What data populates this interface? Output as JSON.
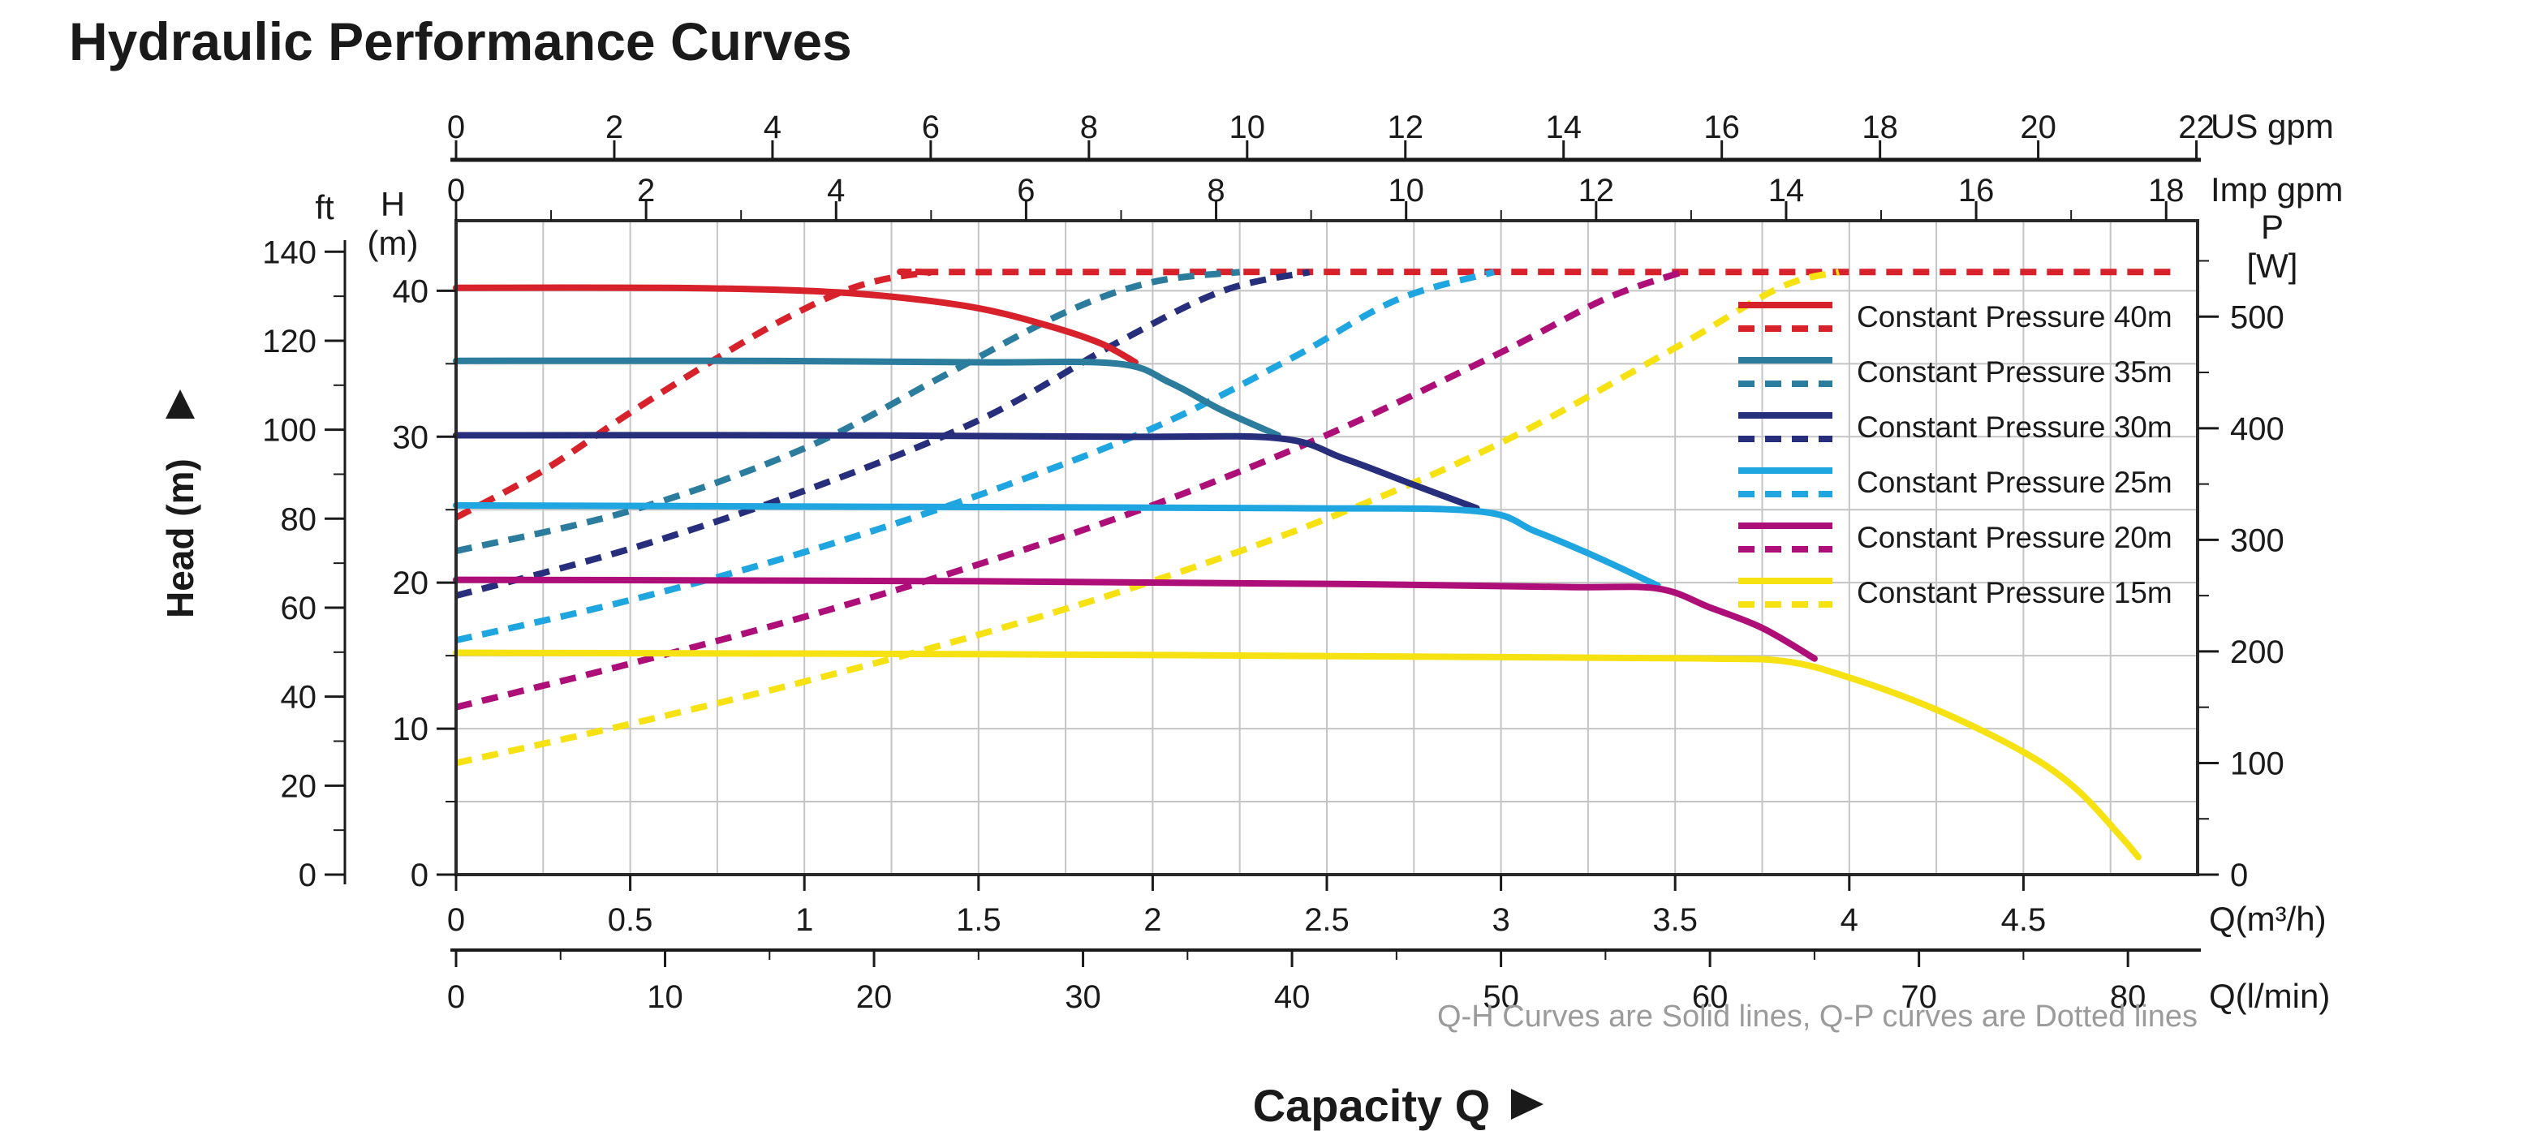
{
  "title": "Hydraulic Performance Curves",
  "note": "Q-H Curves are Solid lines, Q-P curves are Dotted lines",
  "x_axis_title": "Capacity Q",
  "y_axis_title": "Head (m)",
  "colors": {
    "title": "#e0602f",
    "axis": "#1a1a1a",
    "grid": "#c4c4c4",
    "border": "#2a2a2a",
    "note": "#9b9b9b"
  },
  "chart_data": {
    "type": "line",
    "title": "Hydraulic Performance Curves",
    "q_range": [
      0,
      5.0
    ],
    "head_range_m": [
      0,
      44.8
    ],
    "power_range_w": [
      0,
      586
    ],
    "grid": {
      "x_step_m3h": 0.25,
      "y_step_m": 5
    },
    "axes": {
      "us_gpm": {
        "label": "US gpm",
        "m3h_per_unit": 0.22712,
        "ticks": [
          0,
          2,
          4,
          6,
          8,
          10,
          12,
          14,
          16,
          18,
          20,
          22
        ]
      },
      "imp_gpm": {
        "label": "Imp gpm",
        "m3h_per_unit": 0.27276,
        "ticks": [
          0,
          2,
          4,
          6,
          8,
          10,
          12,
          14,
          16,
          18
        ],
        "minor_ticks": [
          1,
          3,
          5,
          7,
          9,
          11,
          13,
          15,
          17
        ]
      },
      "m3h": {
        "label": "Q(m³/h)",
        "ticks": [
          0,
          0.5,
          1,
          1.5,
          2,
          2.5,
          3,
          3.5,
          4,
          4.5
        ]
      },
      "lmin": {
        "label": "Q(l/min)",
        "m3h_per_unit": 0.06,
        "ticks": [
          0,
          10,
          20,
          30,
          40,
          50,
          60,
          70,
          80
        ],
        "minor_ticks": [
          5,
          15,
          25,
          35,
          45,
          55,
          65,
          75
        ]
      },
      "head_m": {
        "label_top": "H",
        "label_unit": "(m)",
        "ticks": [
          0,
          10,
          20,
          30,
          40
        ],
        "minor_ticks": [
          5,
          15,
          25,
          35
        ]
      },
      "head_ft": {
        "label": "ft",
        "m_per_unit": 0.3048,
        "ticks": [
          0,
          20,
          40,
          60,
          80,
          100,
          120,
          140
        ],
        "minor_ticks": [
          10,
          30,
          50,
          70,
          90,
          110,
          130
        ]
      },
      "power_w": {
        "label_top": "P",
        "label_unit": "[W]",
        "ticks": [
          0,
          100,
          200,
          300,
          400,
          500
        ],
        "minor_ticks": [
          50,
          150,
          250,
          350,
          450,
          550
        ]
      }
    },
    "max_power_plateau_w": 540,
    "series": [
      {
        "name": "Constant Pressure 40m",
        "pressure_m": 40,
        "color": "#d7212b",
        "qh": [
          [
            0,
            40.2
          ],
          [
            0.6,
            40.2
          ],
          [
            1.0,
            40.0
          ],
          [
            1.25,
            39.6
          ],
          [
            1.5,
            38.8
          ],
          [
            1.7,
            37.6
          ],
          [
            1.85,
            36.4
          ],
          [
            1.95,
            35.1
          ]
        ],
        "qp": [
          [
            0,
            320
          ],
          [
            0.25,
            362
          ],
          [
            0.5,
            414
          ],
          [
            0.75,
            463
          ],
          [
            0.95,
            499
          ],
          [
            1.15,
            527
          ],
          [
            1.35,
            539
          ],
          [
            1.6,
            540
          ],
          [
            4.93,
            540
          ]
        ]
      },
      {
        "name": "Constant Pressure 35m",
        "pressure_m": 35,
        "color": "#2c7c9e",
        "qh": [
          [
            0,
            35.2
          ],
          [
            0.8,
            35.2
          ],
          [
            1.5,
            35.1
          ],
          [
            1.9,
            35.0
          ],
          [
            2.05,
            33.7
          ],
          [
            2.2,
            31.8
          ],
          [
            2.36,
            30.1
          ]
        ],
        "qp": [
          [
            0,
            290
          ],
          [
            0.5,
            326
          ],
          [
            1.0,
            382
          ],
          [
            1.4,
            447
          ],
          [
            1.75,
            504
          ],
          [
            2.0,
            531
          ],
          [
            2.25,
            540
          ]
        ]
      },
      {
        "name": "Constant Pressure 30m",
        "pressure_m": 30,
        "color": "#272e7c",
        "qh": [
          [
            0,
            30.1
          ],
          [
            1.0,
            30.1
          ],
          [
            1.9,
            30.0
          ],
          [
            2.36,
            29.9
          ],
          [
            2.55,
            28.5
          ],
          [
            2.75,
            26.7
          ],
          [
            2.93,
            25.1
          ]
        ],
        "qp": [
          [
            0,
            250
          ],
          [
            0.5,
            292
          ],
          [
            1.0,
            344
          ],
          [
            1.5,
            407
          ],
          [
            1.9,
            477
          ],
          [
            2.2,
            523
          ],
          [
            2.45,
            540
          ]
        ]
      },
      {
        "name": "Constant Pressure 25m",
        "pressure_m": 25,
        "color": "#1fa5df",
        "qh": [
          [
            0,
            25.3
          ],
          [
            1.2,
            25.2
          ],
          [
            2.4,
            25.1
          ],
          [
            2.93,
            24.9
          ],
          [
            3.1,
            23.5
          ],
          [
            3.28,
            21.7
          ],
          [
            3.45,
            19.8
          ]
        ],
        "qp": [
          [
            0,
            210
          ],
          [
            0.5,
            246
          ],
          [
            1.0,
            289
          ],
          [
            1.5,
            340
          ],
          [
            2.0,
            400
          ],
          [
            2.4,
            463
          ],
          [
            2.7,
            515
          ],
          [
            2.98,
            540
          ]
        ]
      },
      {
        "name": "Constant Pressure 20m",
        "pressure_m": 20,
        "color": "#ae0e78",
        "qh": [
          [
            0,
            20.2
          ],
          [
            1.5,
            20.1
          ],
          [
            2.6,
            19.9
          ],
          [
            3.2,
            19.7
          ],
          [
            3.45,
            19.6
          ],
          [
            3.6,
            18.3
          ],
          [
            3.75,
            16.9
          ],
          [
            3.9,
            14.8
          ]
        ],
        "qp": [
          [
            0,
            150
          ],
          [
            0.5,
            189
          ],
          [
            1.0,
            231
          ],
          [
            1.5,
            278
          ],
          [
            2.0,
            331
          ],
          [
            2.5,
            394
          ],
          [
            3.0,
            468
          ],
          [
            3.3,
            516
          ],
          [
            3.52,
            540
          ]
        ]
      },
      {
        "name": "Constant Pressure 15m",
        "pressure_m": 15,
        "color": "#f6e112",
        "qh": [
          [
            0,
            15.2
          ],
          [
            1.5,
            15.1
          ],
          [
            3.0,
            14.9
          ],
          [
            3.6,
            14.8
          ],
          [
            3.82,
            14.6
          ],
          [
            4.0,
            13.5
          ],
          [
            4.25,
            11.3
          ],
          [
            4.5,
            8.4
          ],
          [
            4.65,
            5.9
          ],
          [
            4.78,
            2.6
          ],
          [
            4.83,
            1.2
          ]
        ],
        "qp": [
          [
            0,
            100
          ],
          [
            0.5,
            135
          ],
          [
            1.0,
            173
          ],
          [
            1.5,
            215
          ],
          [
            2.0,
            263
          ],
          [
            2.5,
            319
          ],
          [
            3.0,
            387
          ],
          [
            3.5,
            472
          ],
          [
            3.8,
            526
          ],
          [
            3.97,
            540
          ]
        ]
      }
    ]
  }
}
